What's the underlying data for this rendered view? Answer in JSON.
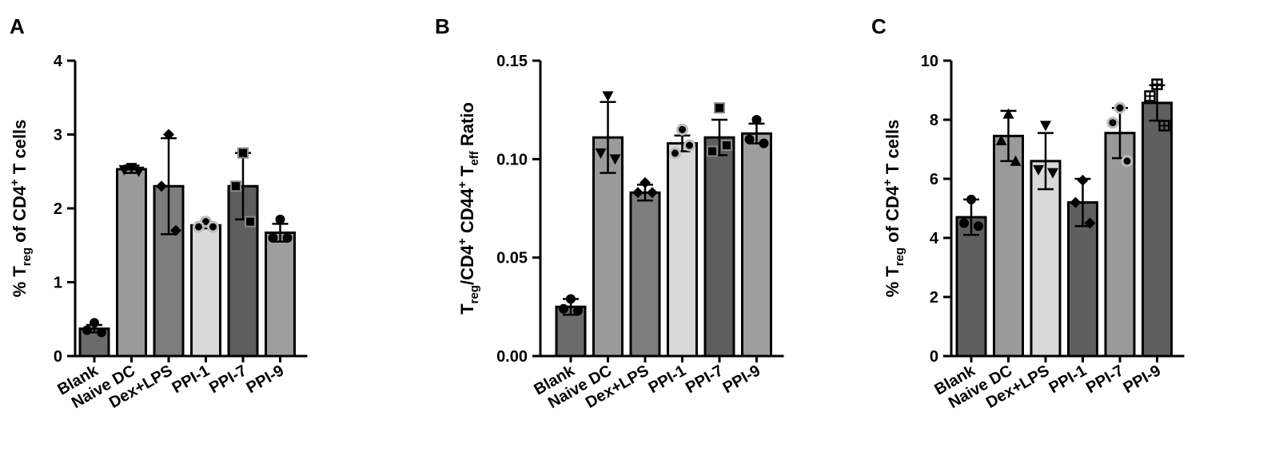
{
  "chart_data": [
    {
      "panel_label": "A",
      "type": "bar",
      "ylabel_parts": [
        "% T",
        "reg",
        " of CD4",
        "+",
        " T cells"
      ],
      "ylim": [
        0,
        4
      ],
      "yticks": [
        "0",
        "1",
        "2",
        "3",
        "4"
      ],
      "ytick_values": [
        0,
        1,
        2,
        3,
        4
      ],
      "categories": [
        "Blank",
        "Naive DC",
        "Dex+LPS",
        "PPI-1",
        "PPI-7",
        "PPI-9"
      ],
      "values": [
        0.37,
        2.53,
        2.3,
        1.77,
        2.3,
        1.67
      ],
      "errors": [
        0.05,
        0.05,
        0.65,
        0.04,
        0.45,
        0.12
      ],
      "points": [
        [
          0.45,
          0.35,
          0.32
        ],
        [
          2.55,
          2.52,
          2.5
        ],
        [
          3.0,
          2.3,
          1.7
        ],
        [
          1.82,
          1.75,
          1.75
        ],
        [
          2.75,
          2.3,
          1.82
        ],
        [
          1.85,
          1.6,
          1.6
        ]
      ],
      "markers": [
        "circle",
        "triangle-down",
        "diamond",
        "circle-open",
        "square",
        "circle"
      ],
      "bar_colors": [
        "#6b6b6b",
        "#9a9a9a",
        "#7d7d7d",
        "#d9d9d9",
        "#5e5e5e",
        "#9e9e9e"
      ]
    },
    {
      "panel_label": "B",
      "type": "bar",
      "ylabel_parts": [
        "T",
        "reg",
        "/CD4",
        "+",
        " CD44",
        "+",
        " T",
        "eff",
        " Ratio"
      ],
      "ylim": [
        0,
        0.15
      ],
      "yticks": [
        "0.00",
        "0.05",
        "0.10",
        "0.15"
      ],
      "ytick_values": [
        0,
        0.05,
        0.1,
        0.15
      ],
      "categories": [
        "Blank",
        "Naive DC",
        "Dex+LPS",
        "PPI-1",
        "PPI-7",
        "PPI-9"
      ],
      "values": [
        0.025,
        0.111,
        0.083,
        0.108,
        0.111,
        0.113
      ],
      "errors": [
        0.004,
        0.018,
        0.004,
        0.004,
        0.009,
        0.005
      ],
      "points": [
        [
          0.029,
          0.024,
          0.023
        ],
        [
          0.132,
          0.103,
          0.1
        ],
        [
          0.088,
          0.083,
          0.083
        ],
        [
          0.115,
          0.103,
          0.107
        ],
        [
          0.126,
          0.104,
          0.107
        ],
        [
          0.12,
          0.11,
          0.108
        ]
      ],
      "markers": [
        "circle",
        "triangle-down",
        "diamond",
        "circle-open",
        "square",
        "circle"
      ],
      "bar_colors": [
        "#6b6b6b",
        "#9a9a9a",
        "#7d7d7d",
        "#d9d9d9",
        "#5e5e5e",
        "#9e9e9e"
      ]
    },
    {
      "panel_label": "C",
      "type": "bar",
      "ylabel_parts": [
        "% T",
        "reg",
        " of CD4",
        "+",
        " T cells"
      ],
      "ylim": [
        0,
        10
      ],
      "yticks": [
        "0",
        "2",
        "4",
        "6",
        "8",
        "10"
      ],
      "ytick_values": [
        0,
        2,
        4,
        6,
        8,
        10
      ],
      "categories": [
        "Blank",
        "Naive DC",
        "Dex+LPS",
        "PPI-1",
        "PPI-7",
        "PPI-9"
      ],
      "values": [
        4.7,
        7.45,
        6.6,
        5.2,
        7.55,
        8.57
      ],
      "errors": [
        0.6,
        0.85,
        0.95,
        0.8,
        0.85,
        0.6
      ],
      "points": [
        [
          5.3,
          4.5,
          4.4
        ],
        [
          8.2,
          7.3,
          6.6
        ],
        [
          7.8,
          6.3,
          6.2
        ],
        [
          5.95,
          5.2,
          4.5
        ],
        [
          8.4,
          7.9,
          6.6
        ],
        [
          9.2,
          8.8,
          7.8
        ]
      ],
      "markers": [
        "circle",
        "triangle-up",
        "triangle-down",
        "diamond",
        "circle-open",
        "square-open-cross"
      ],
      "bar_colors": [
        "#5f5f5f",
        "#9a9a9a",
        "#d9d9d9",
        "#5f5f5f",
        "#9a9a9a",
        "#5f5f5f"
      ]
    }
  ]
}
